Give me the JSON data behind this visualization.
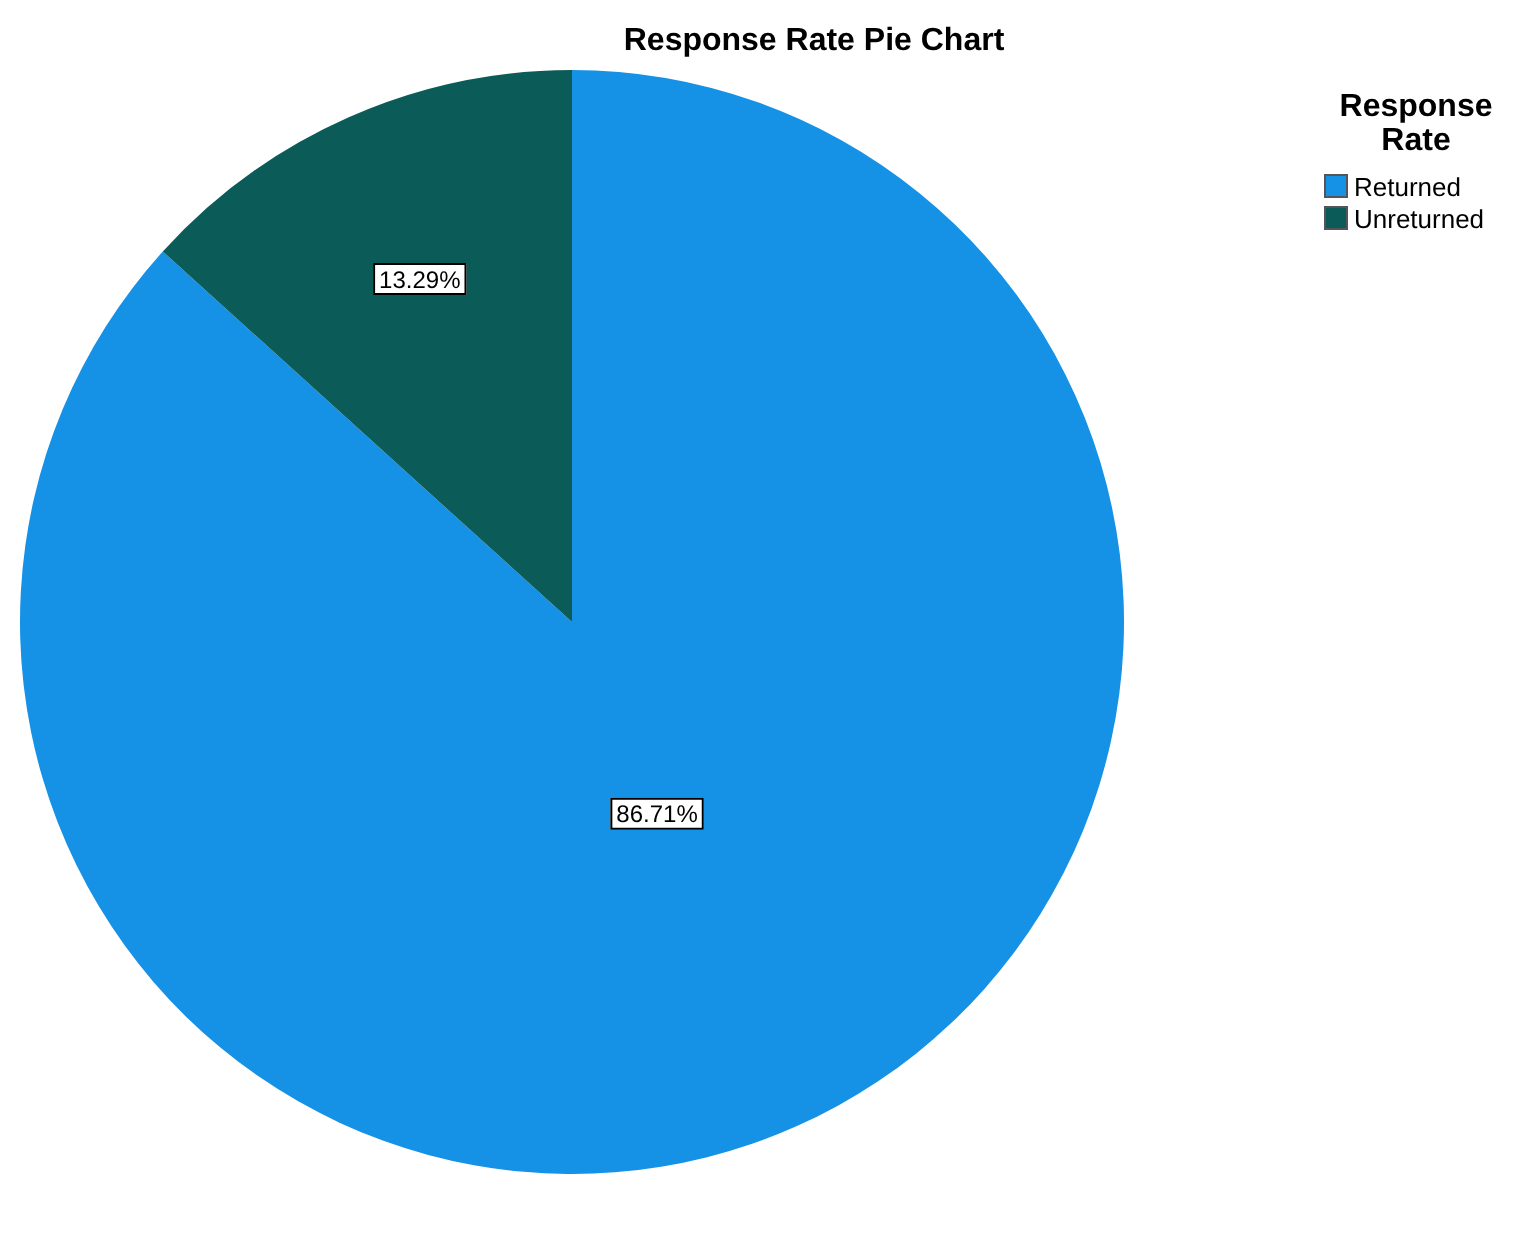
{
  "chart_data": {
    "type": "pie",
    "title": "Response Rate Pie Chart",
    "legend_title": "Response Rate",
    "categories": [
      "Returned",
      "Unreturned"
    ],
    "values": [
      86.71,
      13.29
    ],
    "colors": [
      "#1591e6",
      "#0b5b59"
    ],
    "value_labels": [
      "86.71%",
      "13.29%"
    ],
    "legend": "top right"
  }
}
